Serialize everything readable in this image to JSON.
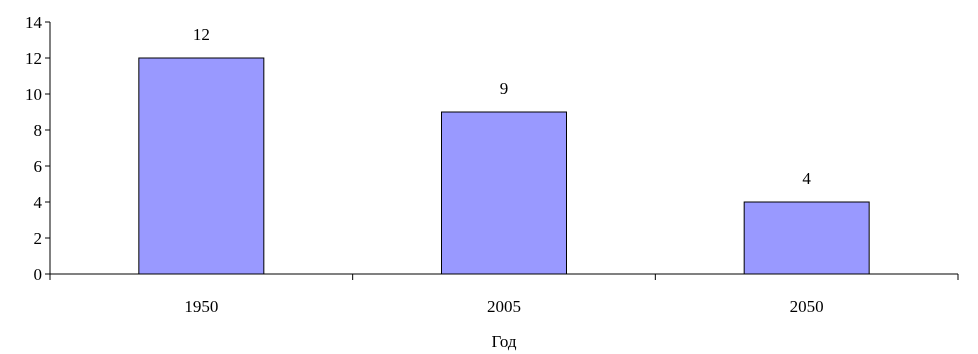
{
  "chart_data": {
    "type": "bar",
    "categories": [
      "1950",
      "2005",
      "2050"
    ],
    "values": [
      12,
      9,
      4
    ],
    "data_labels": [
      "12",
      "9",
      "4"
    ],
    "title": "",
    "xlabel": "Год",
    "ylabel": "",
    "ylim": [
      0,
      14
    ],
    "yticks": [
      0,
      2,
      4,
      6,
      8,
      10,
      12,
      14
    ],
    "grid": false,
    "legend": "none",
    "colors": {
      "bar_fill": "#9999ff",
      "bar_stroke": "#000000",
      "axis": "#000000",
      "text": "#000000"
    }
  }
}
